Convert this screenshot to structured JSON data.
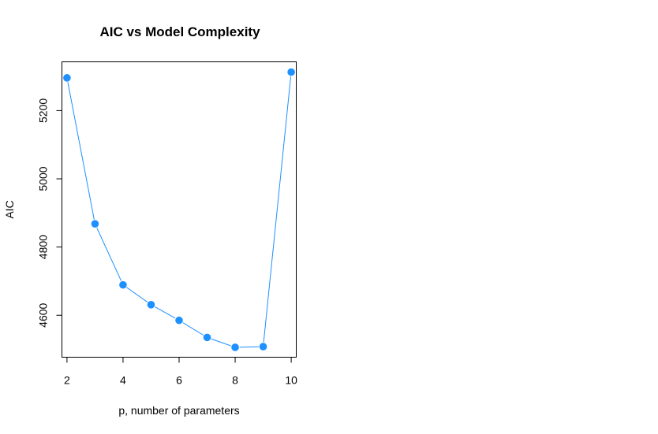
{
  "chart_data": {
    "type": "line",
    "title": "AIC vs Model Complexity",
    "xlabel": "p, number of parameters",
    "ylabel": "AIC",
    "x": [
      2,
      3,
      4,
      5,
      6,
      7,
      8,
      9,
      10
    ],
    "series": [
      {
        "values": [
          5296,
          4868,
          4689,
          4631,
          4585,
          4535,
          4506,
          4508,
          5313
        ]
      }
    ],
    "xlim": [
      1.82,
      10.18
    ],
    "ylim": [
      4477,
      5343
    ],
    "x_ticks": [
      2,
      4,
      6,
      8,
      10
    ],
    "y_ticks": [
      4600,
      4800,
      5000,
      5200
    ],
    "grid": false,
    "color": "#1e90ff",
    "marker": "filled-circle"
  }
}
